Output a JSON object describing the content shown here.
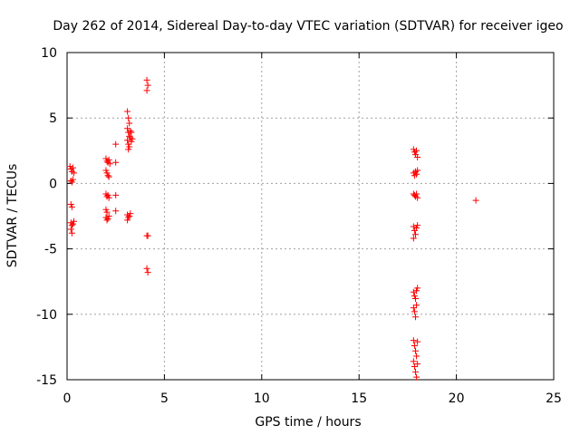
{
  "chart_data": {
    "type": "scatter",
    "title": "Day 262 of 2014, Sidereal Day-to-day VTEC variation (SDTVAR) for receiver igeo",
    "xlabel": "GPS time / hours",
    "ylabel": "SDTVAR / TECUs",
    "xlim": [
      0,
      25
    ],
    "ylim": [
      -15,
      10
    ],
    "xticks": [
      "0",
      "5",
      "10",
      "15",
      "20",
      "25"
    ],
    "yticks": [
      "10",
      "5",
      "0",
      "-5",
      "-10",
      "-15"
    ],
    "grid": true,
    "marker": "+",
    "marker_color": "#ff0000",
    "series": [
      {
        "name": "SDTVAR",
        "points": [
          [
            0.15,
            1.3
          ],
          [
            0.2,
            1.1
          ],
          [
            0.25,
            0.9
          ],
          [
            0.3,
            1.2
          ],
          [
            0.35,
            0.8
          ],
          [
            0.2,
            0.2
          ],
          [
            0.25,
            0.1
          ],
          [
            0.3,
            0.3
          ],
          [
            0.2,
            -1.6
          ],
          [
            0.25,
            -1.8
          ],
          [
            0.2,
            -3.0
          ],
          [
            0.25,
            -3.2
          ],
          [
            0.3,
            -3.1
          ],
          [
            0.35,
            -2.9
          ],
          [
            0.2,
            -3.5
          ],
          [
            0.25,
            -3.8
          ],
          [
            2.0,
            1.9
          ],
          [
            2.05,
            1.7
          ],
          [
            2.1,
            1.6
          ],
          [
            2.15,
            1.8
          ],
          [
            2.2,
            1.5
          ],
          [
            2.0,
            1.0
          ],
          [
            2.05,
            0.8
          ],
          [
            2.1,
            0.6
          ],
          [
            2.15,
            0.5
          ],
          [
            2.0,
            -0.8
          ],
          [
            2.05,
            -1.0
          ],
          [
            2.1,
            -0.9
          ],
          [
            2.15,
            -1.1
          ],
          [
            2.0,
            -2.0
          ],
          [
            2.05,
            -2.2
          ],
          [
            2.0,
            -2.6
          ],
          [
            2.05,
            -2.8
          ],
          [
            2.1,
            -2.7
          ],
          [
            2.15,
            -2.5
          ],
          [
            2.5,
            3.0
          ],
          [
            2.5,
            1.6
          ],
          [
            2.5,
            -0.9
          ],
          [
            2.5,
            -2.1
          ],
          [
            3.1,
            5.5
          ],
          [
            3.15,
            5.0
          ],
          [
            3.2,
            4.6
          ],
          [
            3.1,
            4.2
          ],
          [
            3.15,
            3.9
          ],
          [
            3.2,
            3.6
          ],
          [
            3.25,
            4.0
          ],
          [
            3.1,
            3.3
          ],
          [
            3.15,
            3.0
          ],
          [
            3.2,
            2.8
          ],
          [
            3.25,
            3.5
          ],
          [
            3.3,
            3.2
          ],
          [
            3.15,
            2.6
          ],
          [
            3.3,
            3.9
          ],
          [
            3.35,
            3.4
          ],
          [
            3.1,
            -2.4
          ],
          [
            3.15,
            -2.6
          ],
          [
            3.2,
            -2.5
          ],
          [
            3.25,
            -2.3
          ],
          [
            3.1,
            -2.8
          ],
          [
            4.1,
            7.9
          ],
          [
            4.15,
            7.5
          ],
          [
            4.1,
            7.1
          ],
          [
            4.1,
            -4.0
          ],
          [
            4.15,
            -4.0
          ],
          [
            4.1,
            -6.5
          ],
          [
            4.15,
            -6.8
          ],
          [
            17.8,
            2.6
          ],
          [
            17.85,
            2.4
          ],
          [
            17.9,
            2.2
          ],
          [
            17.95,
            2.5
          ],
          [
            18.0,
            2.0
          ],
          [
            17.8,
            0.8
          ],
          [
            17.85,
            0.6
          ],
          [
            17.9,
            0.9
          ],
          [
            17.95,
            0.7
          ],
          [
            18.0,
            1.0
          ],
          [
            17.8,
            -0.8
          ],
          [
            17.85,
            -0.9
          ],
          [
            17.9,
            -1.0
          ],
          [
            17.95,
            -0.8
          ],
          [
            18.0,
            -1.1
          ],
          [
            17.8,
            -3.3
          ],
          [
            17.85,
            -3.6
          ],
          [
            17.9,
            -3.9
          ],
          [
            17.95,
            -3.4
          ],
          [
            18.0,
            -3.2
          ],
          [
            17.8,
            -4.2
          ],
          [
            17.8,
            -8.3
          ],
          [
            17.85,
            -8.6
          ],
          [
            17.9,
            -8.8
          ],
          [
            17.95,
            -8.2
          ],
          [
            18.0,
            -8.0
          ],
          [
            17.8,
            -9.5
          ],
          [
            17.85,
            -9.8
          ],
          [
            17.9,
            -10.2
          ],
          [
            17.95,
            -9.3
          ],
          [
            17.8,
            -12.0
          ],
          [
            17.85,
            -12.4
          ],
          [
            17.9,
            -12.8
          ],
          [
            17.95,
            -13.2
          ],
          [
            18.0,
            -12.1
          ],
          [
            17.8,
            -13.6
          ],
          [
            17.85,
            -14.0
          ],
          [
            17.9,
            -14.4
          ],
          [
            17.95,
            -14.8
          ],
          [
            18.0,
            -13.8
          ],
          [
            21.0,
            -1.3
          ]
        ]
      }
    ]
  }
}
